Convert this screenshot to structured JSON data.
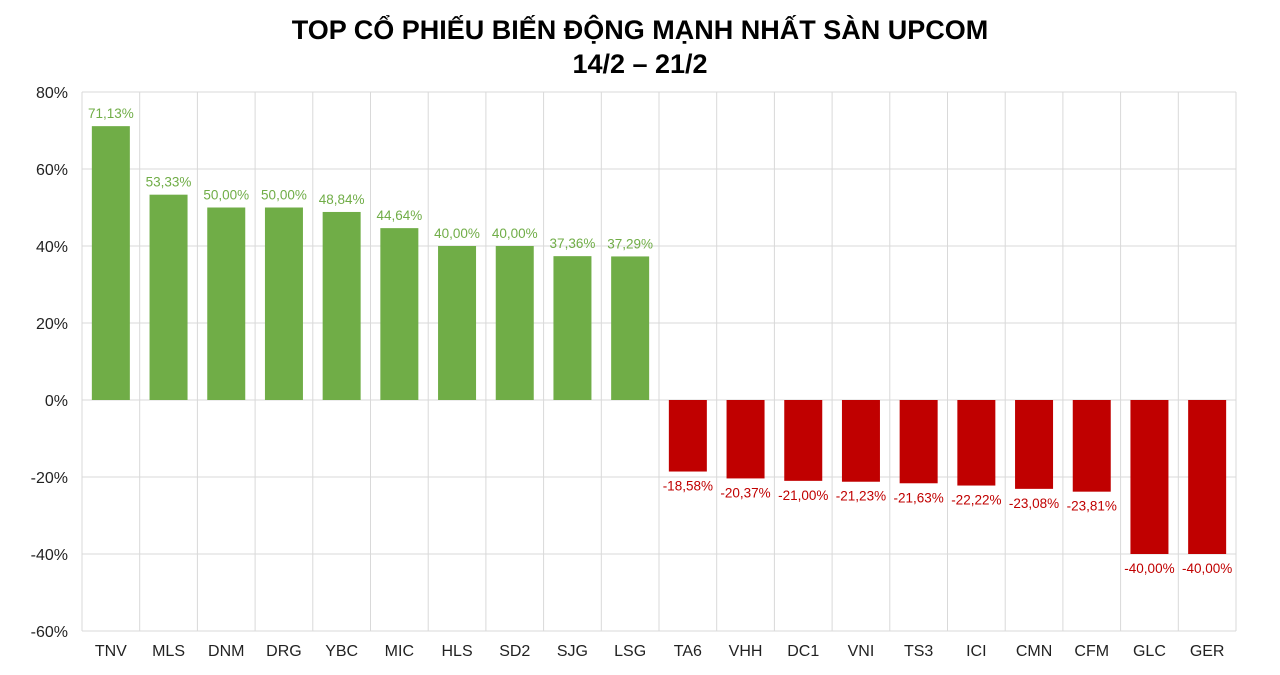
{
  "chart_data": {
    "type": "bar",
    "title": "TOP CỔ PHIẾU BIẾN ĐỘNG MẠNH NHẤT SÀN UPCOM",
    "subtitle": "14/2 – 21/2",
    "xlabel": "",
    "ylabel": "",
    "ylim": [
      -60,
      80
    ],
    "yticks": [
      "80%",
      "60%",
      "40%",
      "20%",
      "0%",
      "-20%",
      "-40%",
      "-60%"
    ],
    "grid": true,
    "legend": "none",
    "categories": [
      "TNV",
      "MLS",
      "DNM",
      "DRG",
      "YBC",
      "MIC",
      "HLS",
      "SD2",
      "SJG",
      "LSG",
      "TA6",
      "VHH",
      "DC1",
      "VNI",
      "TS3",
      "ICI",
      "CMN",
      "CFM",
      "GLC",
      "GER"
    ],
    "values": [
      71.13,
      53.33,
      50.0,
      50.0,
      48.84,
      44.64,
      40.0,
      40.0,
      37.36,
      37.29,
      -18.58,
      -20.37,
      -21.0,
      -21.23,
      -21.63,
      -22.22,
      -23.08,
      -23.81,
      -40.0,
      -40.0
    ],
    "data_labels": [
      "71,13%",
      "53,33%",
      "50,00%",
      "50,00%",
      "48,84%",
      "44,64%",
      "40,00%",
      "40,00%",
      "37,36%",
      "37,29%",
      "-18,58%",
      "-20,37%",
      "-21,00%",
      "-21,23%",
      "-21,63%",
      "-22,22%",
      "-23,08%",
      "-23,81%",
      "-40,00%",
      "-40,00%"
    ],
    "colors": {
      "positive": "#70ad47",
      "negative": "#c00000",
      "grid": "#d9d9d9"
    }
  }
}
